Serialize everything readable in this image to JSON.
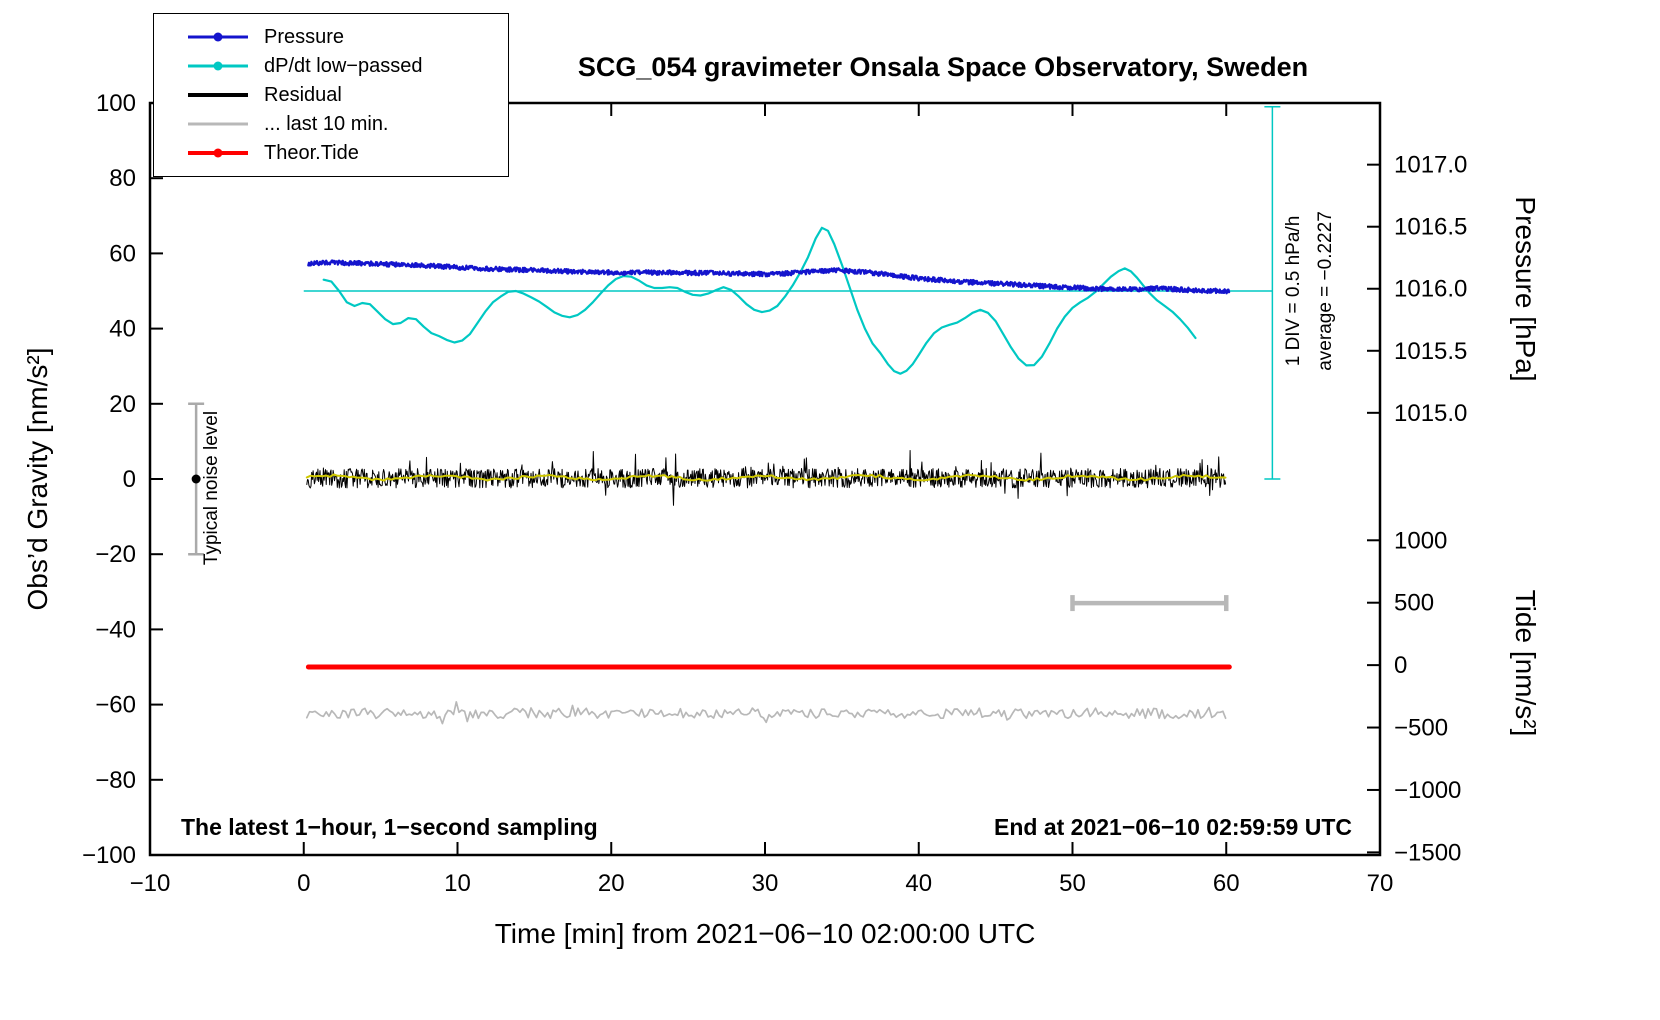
{
  "title": "SCG_054 gravimeter Onsala Space Observatory, Sweden",
  "xlabel": "Time [min] from 2021−06−10 02:00:00 UTC",
  "ylabel_left": "Obs’d Gravity [nm/s²]",
  "ylabel_pressure": "Pressure [hPa]",
  "ylabel_tide": "Tide [nm/s²]",
  "annotations": {
    "noise_label": "Typical noise level",
    "div_label": "1 DIV = 0.5 hPa/h",
    "avg_label": "average = −0.2227",
    "bottom_left": "The latest 1−hour, 1−second sampling",
    "bottom_right": "End at 2021−06−10 02:59:59 UTC"
  },
  "legend": {
    "items": [
      {
        "label": "Pressure",
        "color": "#1414cd",
        "marker": true,
        "lw": 3
      },
      {
        "label": "dP/dt low−passed",
        "color": "#00c8c3",
        "marker": true,
        "lw": 3
      },
      {
        "label": "Residual",
        "color": "#000000",
        "marker": false,
        "lw": 4
      },
      {
        "label": "... last 10 min.",
        "color": "#b8b8b8",
        "marker": false,
        "lw": 3
      },
      {
        "label": "Theor.Tide",
        "color": "#ff0000",
        "marker": true,
        "lw": 4
      }
    ]
  },
  "chart_data": {
    "type": "line",
    "title": "SCG_054 gravimeter Onsala Space Observatory, Sweden",
    "x_axis": {
      "label": "Time [min] from 2021-06-10 02:00:00 UTC",
      "range": [
        -10,
        70
      ],
      "ticks": [
        -10,
        0,
        10,
        20,
        30,
        40,
        50,
        60,
        70
      ]
    },
    "y_axis_left": {
      "label": "Obs'd Gravity [nm/s2]",
      "range": [
        -100,
        100
      ],
      "ticks": [
        -100,
        -80,
        -60,
        -40,
        -20,
        0,
        20,
        40,
        60,
        80,
        100
      ]
    },
    "y_axis_pressure": {
      "label": "Pressure [hPa]",
      "ticks": [
        1017.0,
        1016.5,
        1016.0,
        1015.5,
        1015.0
      ],
      "gravity_of_1016": 50.6,
      "gravity_per_hpa": 33,
      "div_scale": "1 DIV = 0.5 hPa/h",
      "average_hpa_per_h": -0.2227
    },
    "y_axis_tide": {
      "label": "Tide [nm/s2]",
      "ticks": [
        1000,
        500,
        0,
        -500,
        -1000,
        -1500
      ],
      "gravity_of_0": -49.5,
      "gravity_per_unit": 0.0332
    },
    "grid": false,
    "legend_position": "top-left",
    "reference_line": {
      "color": "#00c8c3",
      "y": 50,
      "x": [
        0,
        63
      ],
      "width": 1.5
    },
    "div_marker": {
      "color": "#00c8c3",
      "x": 63,
      "y": [
        0,
        99
      ],
      "cap": 8,
      "width": 1.5
    },
    "noise_bar": {
      "x": -7,
      "y": [
        -20,
        20
      ],
      "color": "#aaaaaa",
      "cap": 8,
      "dot_y": 0,
      "dot_color": "#000000"
    },
    "scale_bar": {
      "y": -33,
      "x": [
        50,
        60
      ],
      "color": "#b8b8b8",
      "cap": 8,
      "width": 4.5
    },
    "series": [
      {
        "name": "dP/dt low-passed",
        "color": "#00c8c3",
        "width": 2.2,
        "mode": "points",
        "points": [
          [
            1.3,
            53
          ],
          [
            1.8,
            52.5
          ],
          [
            2.3,
            50
          ],
          [
            2.8,
            47
          ],
          [
            3.3,
            46
          ],
          [
            3.8,
            46.8
          ],
          [
            4.3,
            46.5
          ],
          [
            4.8,
            44.5
          ],
          [
            5.3,
            42.5
          ],
          [
            5.8,
            41.2
          ],
          [
            6.3,
            41.5
          ],
          [
            6.8,
            42.8
          ],
          [
            7.3,
            42.5
          ],
          [
            7.8,
            40.5
          ],
          [
            8.3,
            38.8
          ],
          [
            8.8,
            38
          ],
          [
            9.3,
            37
          ],
          [
            9.8,
            36.3
          ],
          [
            10.3,
            36.8
          ],
          [
            10.8,
            38.5
          ],
          [
            11.3,
            41.5
          ],
          [
            11.8,
            44.5
          ],
          [
            12.3,
            47
          ],
          [
            12.8,
            48.5
          ],
          [
            13.3,
            49.8
          ],
          [
            13.8,
            50
          ],
          [
            14.3,
            49.3
          ],
          [
            14.8,
            48.3
          ],
          [
            15.3,
            47.2
          ],
          [
            15.8,
            45.8
          ],
          [
            16.3,
            44.3
          ],
          [
            16.8,
            43.4
          ],
          [
            17.3,
            43
          ],
          [
            17.8,
            43.6
          ],
          [
            18.3,
            45
          ],
          [
            18.8,
            47
          ],
          [
            19.3,
            49.3
          ],
          [
            19.8,
            51.5
          ],
          [
            20.3,
            53.2
          ],
          [
            20.8,
            54
          ],
          [
            21.3,
            53.8
          ],
          [
            21.8,
            52.8
          ],
          [
            22.3,
            51.5
          ],
          [
            22.8,
            50.8
          ],
          [
            23.3,
            50.8
          ],
          [
            23.8,
            51
          ],
          [
            24.3,
            50.8
          ],
          [
            24.8,
            49.8
          ],
          [
            25.3,
            49
          ],
          [
            25.8,
            48.8
          ],
          [
            26.3,
            49.3
          ],
          [
            26.8,
            50.2
          ],
          [
            27.3,
            51
          ],
          [
            27.8,
            50.3
          ],
          [
            28.3,
            48.5
          ],
          [
            28.8,
            46.5
          ],
          [
            29.3,
            45
          ],
          [
            29.8,
            44.4
          ],
          [
            30.3,
            44.8
          ],
          [
            30.8,
            46
          ],
          [
            31.3,
            48.5
          ],
          [
            31.8,
            51.5
          ],
          [
            32.3,
            55
          ],
          [
            32.8,
            59
          ],
          [
            33.3,
            64
          ],
          [
            33.7,
            66.8
          ],
          [
            34.1,
            66
          ],
          [
            34.5,
            62.5
          ],
          [
            35,
            57
          ],
          [
            35.5,
            51
          ],
          [
            36,
            45
          ],
          [
            36.5,
            40
          ],
          [
            37,
            36
          ],
          [
            37.5,
            33.5
          ],
          [
            38,
            30.5
          ],
          [
            38.4,
            28.7
          ],
          [
            38.8,
            28
          ],
          [
            39.2,
            28.8
          ],
          [
            39.6,
            30.5
          ],
          [
            40,
            33
          ],
          [
            40.5,
            36.2
          ],
          [
            41,
            38.8
          ],
          [
            41.5,
            40.3
          ],
          [
            42,
            41
          ],
          [
            42.5,
            41.6
          ],
          [
            43,
            42.8
          ],
          [
            43.5,
            44.2
          ],
          [
            44,
            45
          ],
          [
            44.5,
            44.2
          ],
          [
            45,
            42
          ],
          [
            45.5,
            38.5
          ],
          [
            46,
            35
          ],
          [
            46.5,
            32
          ],
          [
            47,
            30.2
          ],
          [
            47.5,
            30.3
          ],
          [
            48,
            32.5
          ],
          [
            48.5,
            36
          ],
          [
            49,
            40
          ],
          [
            49.5,
            43.2
          ],
          [
            50,
            45.5
          ],
          [
            50.5,
            47
          ],
          [
            51,
            48.2
          ],
          [
            51.5,
            49.8
          ],
          [
            52,
            51.8
          ],
          [
            52.5,
            53.8
          ],
          [
            53,
            55.3
          ],
          [
            53.4,
            56
          ],
          [
            53.8,
            55.2
          ],
          [
            54.2,
            53.5
          ],
          [
            54.6,
            51.5
          ],
          [
            55,
            49.5
          ],
          [
            55.5,
            47.5
          ],
          [
            56,
            46
          ],
          [
            56.5,
            44.5
          ],
          [
            57,
            42.5
          ],
          [
            57.5,
            40.2
          ],
          [
            58,
            37.5
          ]
        ]
      },
      {
        "name": "Pressure",
        "color": "#1414cd",
        "width": 2.4,
        "mode": "noisy",
        "noise": 0.6,
        "spike": 0,
        "spike_p": 0,
        "step": 0.04,
        "base_points": [
          [
            0.3,
            57.3
          ],
          [
            1.5,
            57.6
          ],
          [
            3,
            57.4
          ],
          [
            4.5,
            57.3
          ],
          [
            6,
            57.0
          ],
          [
            7.5,
            56.8
          ],
          [
            9,
            56.5
          ],
          [
            10.5,
            56.2
          ],
          [
            12,
            55.9
          ],
          [
            13.5,
            55.7
          ],
          [
            15,
            55.5
          ],
          [
            16.5,
            55.3
          ],
          [
            18,
            55.1
          ],
          [
            19.5,
            55.0
          ],
          [
            21,
            54.8
          ],
          [
            22.5,
            54.9
          ],
          [
            24,
            54.9
          ],
          [
            25.5,
            54.8
          ],
          [
            27,
            54.7
          ],
          [
            28.5,
            54.6
          ],
          [
            30,
            54.5
          ],
          [
            31.5,
            54.7
          ],
          [
            33,
            55.1
          ],
          [
            34.5,
            55.5
          ],
          [
            36,
            55.2
          ],
          [
            37.5,
            54.6
          ],
          [
            39,
            53.8
          ],
          [
            40.5,
            53.2
          ],
          [
            42,
            52.7
          ],
          [
            43.5,
            52.3
          ],
          [
            45,
            52.0
          ],
          [
            46.5,
            51.7
          ],
          [
            48,
            51.3
          ],
          [
            49.5,
            51.0
          ],
          [
            51,
            50.7
          ],
          [
            52.5,
            50.5
          ],
          [
            54,
            50.4
          ],
          [
            55.5,
            50.7
          ],
          [
            57,
            50.4
          ],
          [
            58.5,
            50.1
          ],
          [
            60.2,
            49.9
          ]
        ]
      },
      {
        "name": "Residual",
        "color": "#000000",
        "width": 1,
        "mode": "noisy",
        "noise": 2.6,
        "spike": 5,
        "spike_p": 0.06,
        "step": 0.045,
        "base_points": [
          [
            0.2,
            0.2
          ],
          [
            60,
            0.2
          ]
        ]
      },
      {
        "name": "Residual low-passed",
        "color": "#cfc800",
        "width": 2,
        "mode": "noisy",
        "noise": 0.35,
        "spike": 0,
        "spike_p": 0,
        "step": 0.25,
        "wave_amp": 0.5,
        "wave_freq": 0.9,
        "base_points": [
          [
            0.2,
            0.35
          ],
          [
            60,
            0.35
          ]
        ]
      },
      {
        "name": "Theor.Tide",
        "color": "#ff0000",
        "width": 5,
        "mode": "points",
        "points": [
          [
            0.3,
            -50
          ],
          [
            60.2,
            -50
          ]
        ]
      },
      {
        "name": "... last 10 min.",
        "color": "#b8b8b8",
        "width": 1.7,
        "mode": "noisy",
        "noise": 1.4,
        "spike": 1.8,
        "spike_p": 0.1,
        "step": 0.18,
        "base_points": [
          [
            0.2,
            -62.3
          ],
          [
            60,
            -62.3
          ]
        ]
      }
    ]
  }
}
